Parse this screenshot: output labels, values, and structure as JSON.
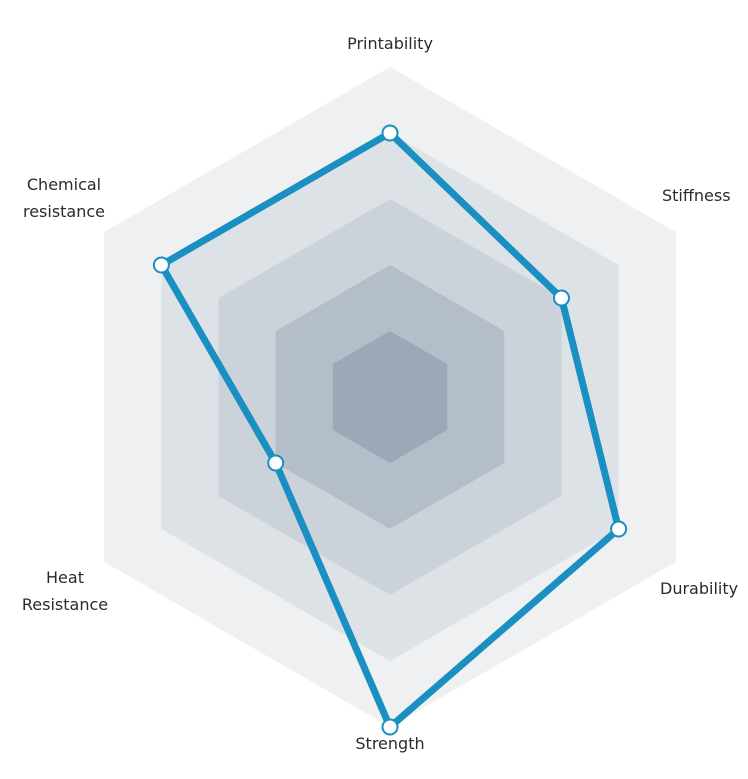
{
  "chart_data": {
    "type": "radar",
    "axes": [
      "Printability",
      "Stiffness",
      "Durability",
      "Strength",
      "Heat\nResistance",
      "Chemical\nresistance"
    ],
    "values": [
      4,
      3,
      4,
      5,
      2,
      4
    ],
    "rings": 5,
    "max": 5,
    "grid": true,
    "colors": {
      "series": "#1a8fc1",
      "marker_fill": "#ffffff",
      "rings": [
        "#eef0f2",
        "#dde2e7",
        "#cbd2da",
        "#b3bec9",
        "#9aa8b7"
      ]
    }
  }
}
